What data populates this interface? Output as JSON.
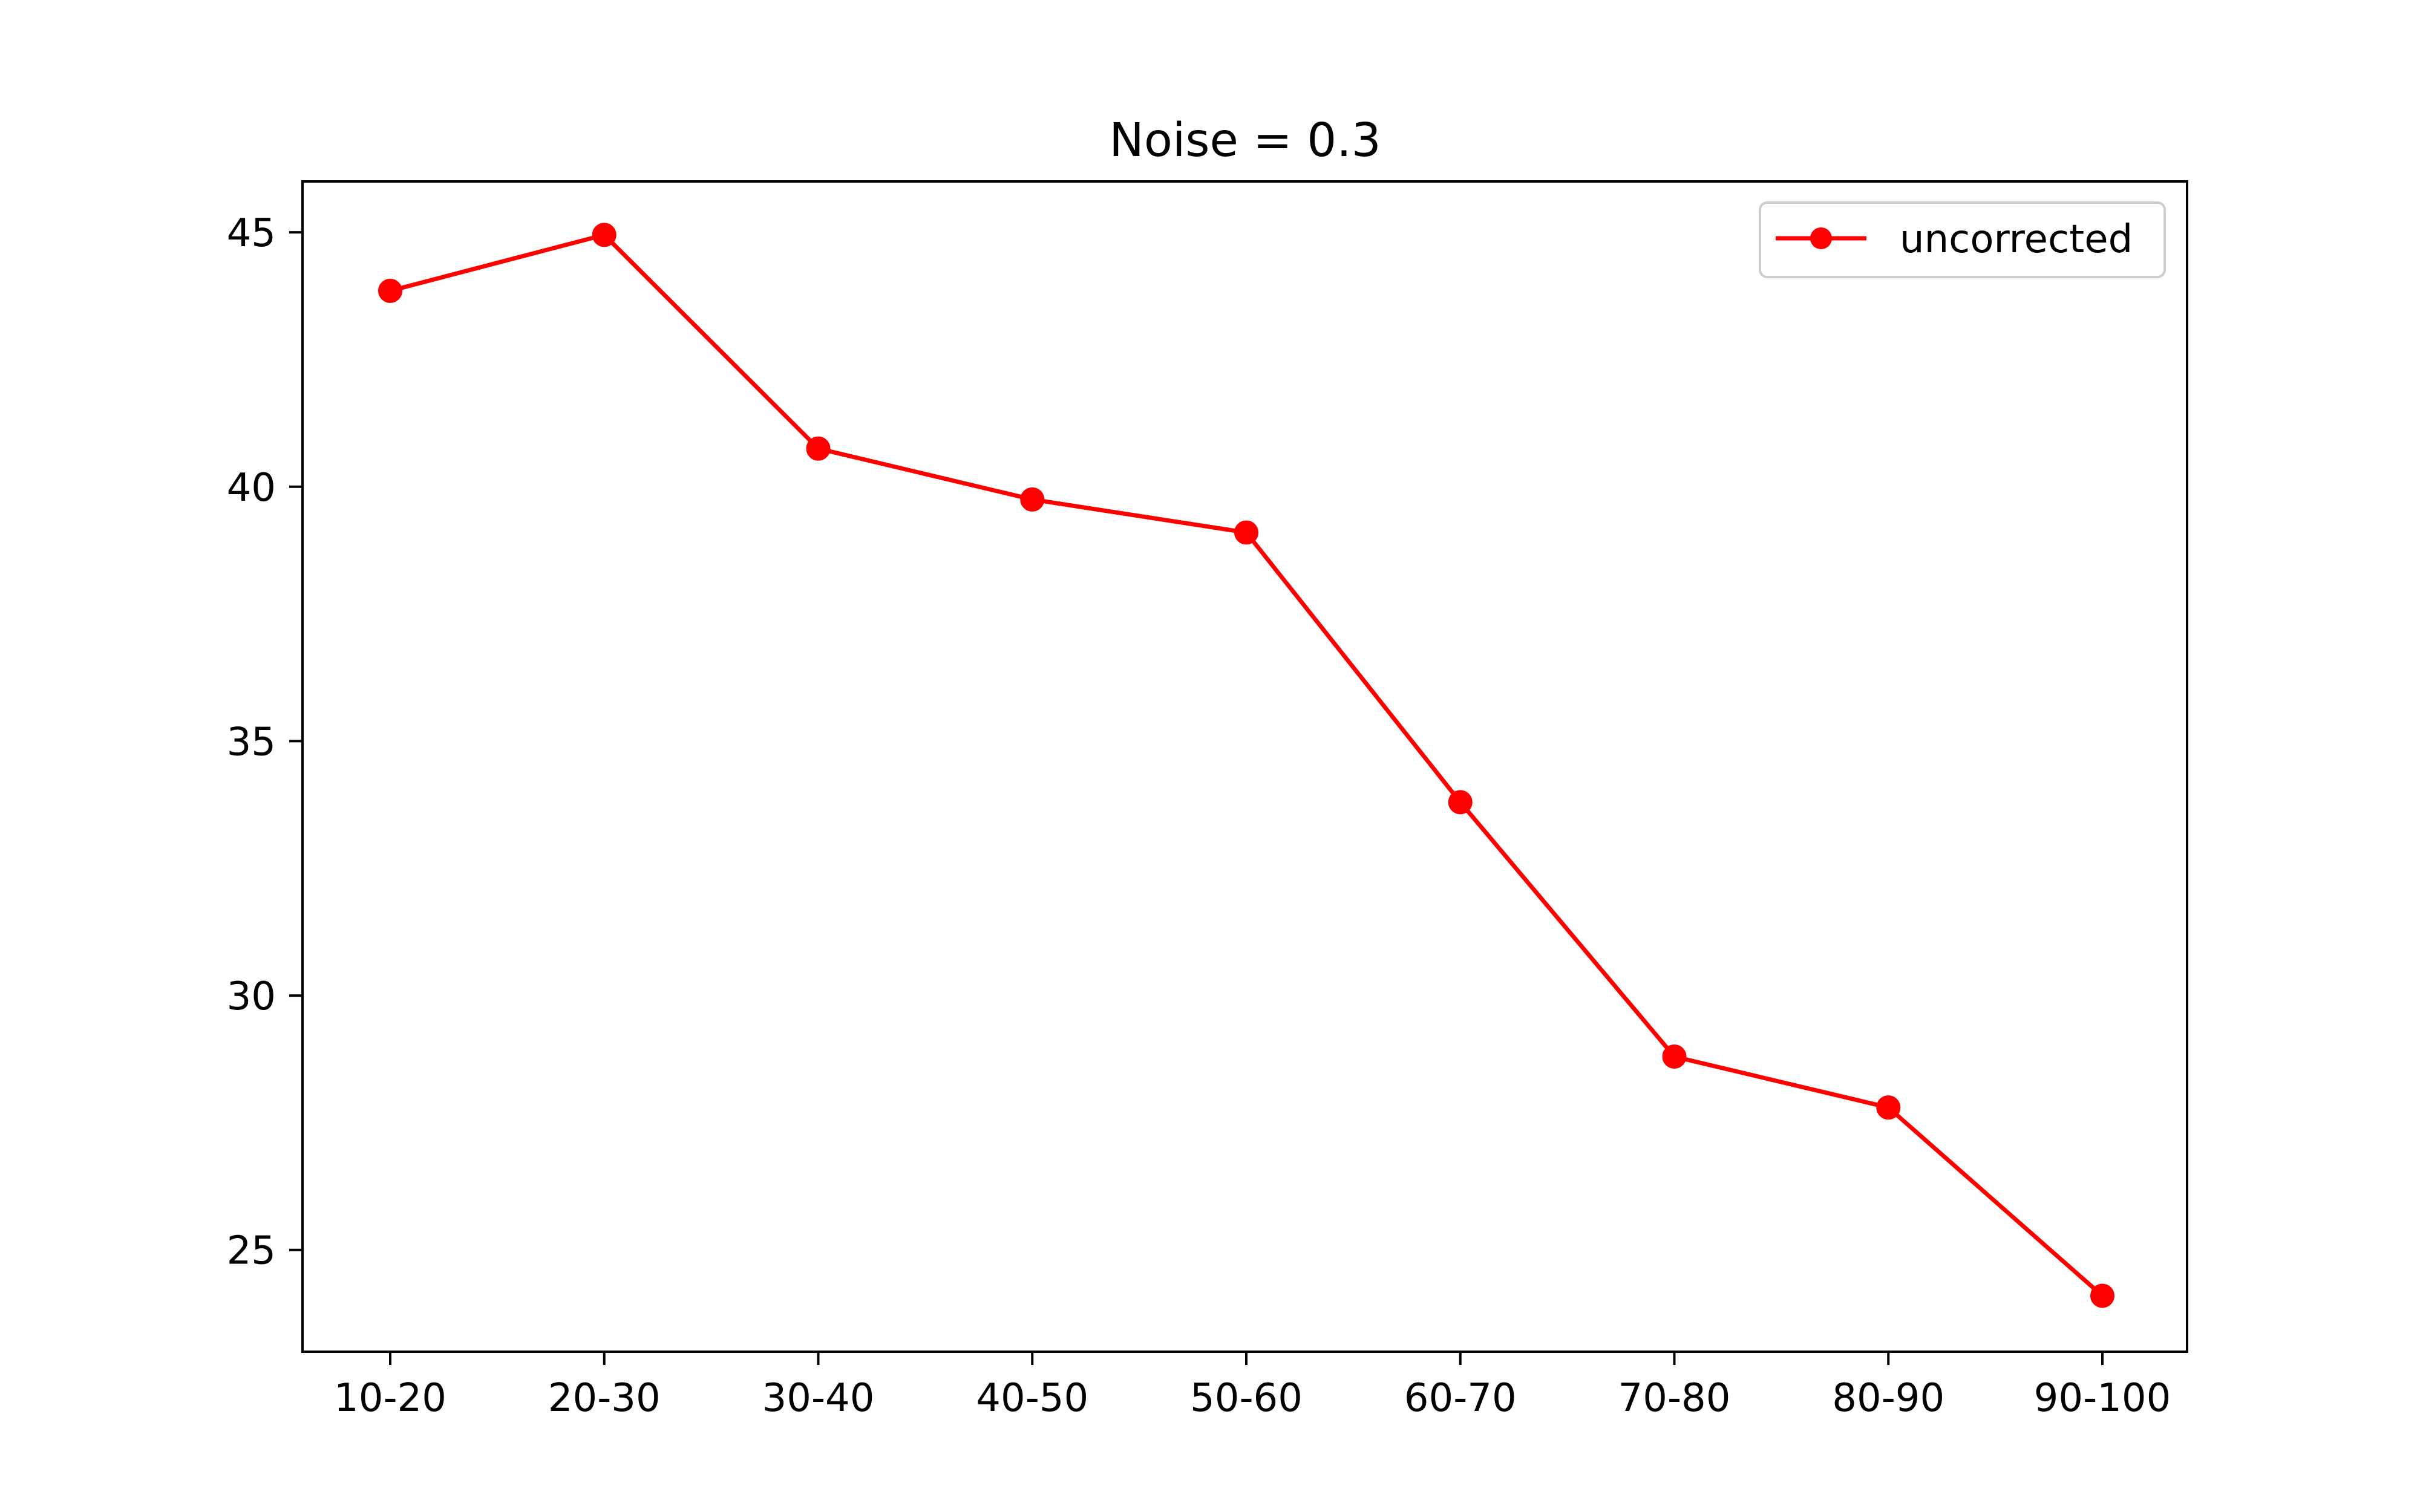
{
  "chart_data": {
    "type": "line",
    "title": "Noise = 0.3",
    "xlabel": "",
    "ylabel": "",
    "categories": [
      "10-20",
      "20-30",
      "30-40",
      "40-50",
      "50-60",
      "60-70",
      "70-80",
      "80-90",
      "90-100"
    ],
    "series": [
      {
        "name": "uncorrected",
        "color": "#ff0000",
        "marker": "circle",
        "values": [
          43.85,
          44.95,
          40.75,
          39.75,
          39.1,
          33.8,
          28.8,
          27.8,
          24.1
        ]
      }
    ],
    "yticks": [
      25,
      30,
      35,
      40,
      45
    ],
    "ylim": [
      23.0,
      46.0
    ],
    "grid": false,
    "legend_position": "top-right"
  }
}
